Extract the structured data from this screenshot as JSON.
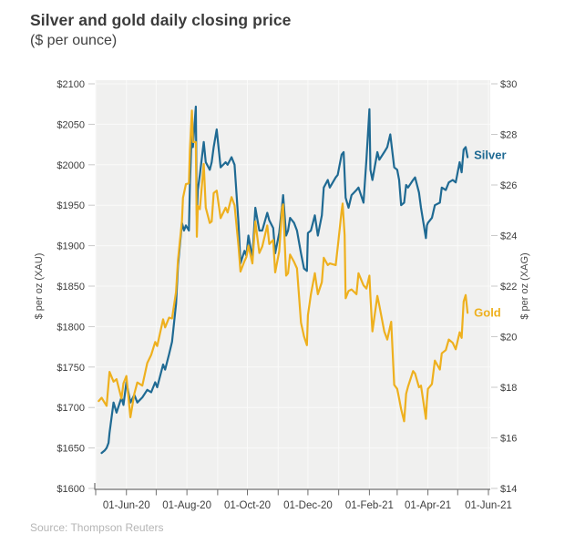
{
  "header": {
    "title": "Silver and gold daily closing price",
    "subtitle": "($ per ounce)"
  },
  "footer": {
    "source": "Source: Thompson Reuters"
  },
  "colors": {
    "silver_line": "#1f6a93",
    "gold_line": "#eeb01e",
    "plot_bg": "#f0f0ef",
    "grid": "#fafaf9",
    "axis_line": "#6e6e6e",
    "tick_minor": "#c9c9c9",
    "tick_text": "#3d3d3d",
    "axis_title_text": "#4a4a4a",
    "title_text": "#3b3b3b",
    "source_text": "#b5b5b5"
  },
  "chart_data": {
    "type": "line",
    "title": "Silver and gold daily closing price",
    "subtitle": "($ per ounce)",
    "x_axis": {
      "start_date": "01-May-20",
      "end_date": "01-Jun-21",
      "range_days": 396,
      "major_ticks": [
        {
          "day": 31,
          "label": "01-Jun-20"
        },
        {
          "day": 92,
          "label": "01-Aug-20"
        },
        {
          "day": 153,
          "label": "01-Oct-20"
        },
        {
          "day": 214,
          "label": "01-Dec-20"
        },
        {
          "day": 276,
          "label": "01-Feb-21"
        },
        {
          "day": 335,
          "label": "01-Apr-21"
        },
        {
          "day": 396,
          "label": "01-Jun-21"
        }
      ],
      "minor_tick_days": [
        0,
        61,
        123,
        184,
        245,
        304,
        365
      ]
    },
    "y_left": {
      "label": "$ per oz (XAU)",
      "min": 1600,
      "max": 2100,
      "step": 50,
      "tick_prefix": "$"
    },
    "y_right": {
      "label": "$ per oz (XAG)",
      "min": 14,
      "max": 30,
      "step": 2,
      "tick_prefix": "$"
    },
    "grid": {
      "horizontal": "left-axis-steps",
      "vertical": "monthly"
    },
    "series": [
      {
        "name": "Silver",
        "axis": "right",
        "color": "#1f6a93",
        "points": [
          [
            6,
            15.4
          ],
          [
            9,
            15.5
          ],
          [
            11,
            15.6
          ],
          [
            13,
            15.8
          ],
          [
            14,
            16.2
          ],
          [
            17,
            17.1
          ],
          [
            18,
            17.4
          ],
          [
            21,
            17.0
          ],
          [
            26,
            17.6
          ],
          [
            28,
            17.3
          ],
          [
            31,
            18.2
          ],
          [
            35,
            17.4
          ],
          [
            39,
            17.7
          ],
          [
            42,
            17.4
          ],
          [
            47,
            17.6
          ],
          [
            52,
            17.9
          ],
          [
            56,
            17.8
          ],
          [
            60,
            18.2
          ],
          [
            62,
            18.0
          ],
          [
            68,
            18.9
          ],
          [
            70,
            18.7
          ],
          [
            74,
            19.3
          ],
          [
            77,
            19.8
          ],
          [
            81,
            21.3
          ],
          [
            83,
            22.8
          ],
          [
            87,
            24.5
          ],
          [
            89,
            24.2
          ],
          [
            91,
            24.4
          ],
          [
            94,
            24.2
          ],
          [
            95,
            26.0
          ],
          [
            97,
            28.3
          ],
          [
            98,
            27.5
          ],
          [
            101,
            29.1
          ],
          [
            102,
            24.8
          ],
          [
            103,
            25.8
          ],
          [
            105,
            26.4
          ],
          [
            109,
            27.7
          ],
          [
            111,
            26.9
          ],
          [
            115,
            26.6
          ],
          [
            117,
            26.9
          ],
          [
            119,
            27.5
          ],
          [
            122,
            28.2
          ],
          [
            126,
            26.7
          ],
          [
            131,
            26.9
          ],
          [
            133,
            26.8
          ],
          [
            137,
            27.1
          ],
          [
            140,
            26.8
          ],
          [
            144,
            24.5
          ],
          [
            146,
            22.9
          ],
          [
            150,
            23.4
          ],
          [
            152,
            23.2
          ],
          [
            154,
            24.0
          ],
          [
            158,
            23.1
          ],
          [
            161,
            25.1
          ],
          [
            165,
            24.2
          ],
          [
            168,
            24.2
          ],
          [
            173,
            24.9
          ],
          [
            175,
            24.6
          ],
          [
            179,
            24.3
          ],
          [
            181,
            23.3
          ],
          [
            185,
            24.1
          ],
          [
            188,
            25.2
          ],
          [
            189,
            25.6
          ],
          [
            192,
            24.0
          ],
          [
            194,
            24.2
          ],
          [
            196,
            24.7
          ],
          [
            200,
            24.5
          ],
          [
            203,
            24.2
          ],
          [
            207,
            23.3
          ],
          [
            210,
            22.7
          ],
          [
            213,
            22.6
          ],
          [
            214,
            24.1
          ],
          [
            217,
            24.2
          ],
          [
            221,
            24.8
          ],
          [
            224,
            24.0
          ],
          [
            228,
            24.8
          ],
          [
            230,
            25.9
          ],
          [
            234,
            26.2
          ],
          [
            236,
            25.9
          ],
          [
            242,
            26.3
          ],
          [
            244,
            26.4
          ],
          [
            248,
            27.2
          ],
          [
            250,
            27.3
          ],
          [
            252,
            25.5
          ],
          [
            255,
            25.1
          ],
          [
            258,
            25.6
          ],
          [
            263,
            25.8
          ],
          [
            265,
            25.9
          ],
          [
            270,
            25.3
          ],
          [
            273,
            27.0
          ],
          [
            276,
            29.0
          ],
          [
            277,
            26.6
          ],
          [
            279,
            26.2
          ],
          [
            284,
            27.3
          ],
          [
            286,
            27.0
          ],
          [
            291,
            27.3
          ],
          [
            294,
            27.5
          ],
          [
            297,
            28.0
          ],
          [
            301,
            26.7
          ],
          [
            304,
            26.6
          ],
          [
            306,
            26.2
          ],
          [
            308,
            25.2
          ],
          [
            311,
            25.3
          ],
          [
            313,
            26.0
          ],
          [
            315,
            25.9
          ],
          [
            320,
            26.2
          ],
          [
            322,
            26.3
          ],
          [
            326,
            25.7
          ],
          [
            328,
            25.1
          ],
          [
            333,
            23.9
          ],
          [
            334,
            24.4
          ],
          [
            335,
            24.5
          ],
          [
            339,
            24.7
          ],
          [
            342,
            25.2
          ],
          [
            347,
            25.3
          ],
          [
            349,
            25.9
          ],
          [
            353,
            25.8
          ],
          [
            356,
            26.1
          ],
          [
            360,
            26.2
          ],
          [
            363,
            26.1
          ],
          [
            367,
            26.9
          ],
          [
            369,
            26.5
          ],
          [
            371,
            27.4
          ],
          [
            373,
            27.5
          ],
          [
            375,
            27.1
          ]
        ]
      },
      {
        "name": "Gold",
        "axis": "left",
        "color": "#eeb01e",
        "points": [
          [
            3,
            1708
          ],
          [
            6,
            1712
          ],
          [
            11,
            1702
          ],
          [
            14,
            1744
          ],
          [
            18,
            1732
          ],
          [
            21,
            1735
          ],
          [
            26,
            1711
          ],
          [
            28,
            1730
          ],
          [
            31,
            1739
          ],
          [
            35,
            1688
          ],
          [
            39,
            1717
          ],
          [
            42,
            1731
          ],
          [
            47,
            1727
          ],
          [
            52,
            1755
          ],
          [
            56,
            1765
          ],
          [
            60,
            1781
          ],
          [
            62,
            1776
          ],
          [
            68,
            1809
          ],
          [
            70,
            1799
          ],
          [
            74,
            1811
          ],
          [
            77,
            1810
          ],
          [
            81,
            1843
          ],
          [
            83,
            1882
          ],
          [
            87,
            1931
          ],
          [
            88,
            1959
          ],
          [
            91,
            1976
          ],
          [
            94,
            1977
          ],
          [
            95,
            2018
          ],
          [
            97,
            2067
          ],
          [
            98,
            2028
          ],
          [
            101,
            2028
          ],
          [
            102,
            1911
          ],
          [
            103,
            1949
          ],
          [
            105,
            1945
          ],
          [
            109,
            2001
          ],
          [
            111,
            1947
          ],
          [
            115,
            1928
          ],
          [
            117,
            1930
          ],
          [
            119,
            1965
          ],
          [
            122,
            1968
          ],
          [
            126,
            1934
          ],
          [
            131,
            1947
          ],
          [
            133,
            1941
          ],
          [
            137,
            1960
          ],
          [
            140,
            1950
          ],
          [
            144,
            1900
          ],
          [
            146,
            1868
          ],
          [
            150,
            1881
          ],
          [
            152,
            1886
          ],
          [
            154,
            1900
          ],
          [
            158,
            1878
          ],
          [
            161,
            1930
          ],
          [
            165,
            1891
          ],
          [
            168,
            1899
          ],
          [
            173,
            1925
          ],
          [
            175,
            1902
          ],
          [
            179,
            1907
          ],
          [
            181,
            1867
          ],
          [
            185,
            1893
          ],
          [
            188,
            1947
          ],
          [
            189,
            1951
          ],
          [
            192,
            1863
          ],
          [
            194,
            1866
          ],
          [
            196,
            1889
          ],
          [
            200,
            1880
          ],
          [
            203,
            1872
          ],
          [
            207,
            1805
          ],
          [
            210,
            1788
          ],
          [
            213,
            1777
          ],
          [
            214,
            1814
          ],
          [
            217,
            1840
          ],
          [
            221,
            1866
          ],
          [
            224,
            1840
          ],
          [
            228,
            1855
          ],
          [
            230,
            1885
          ],
          [
            234,
            1876
          ],
          [
            236,
            1878
          ],
          [
            242,
            1876
          ],
          [
            244,
            1898
          ],
          [
            248,
            1943
          ],
          [
            249,
            1952
          ],
          [
            251,
            1913
          ],
          [
            252,
            1835
          ],
          [
            255,
            1844
          ],
          [
            258,
            1846
          ],
          [
            263,
            1840
          ],
          [
            265,
            1866
          ],
          [
            270,
            1851
          ],
          [
            273,
            1847
          ],
          [
            276,
            1863
          ],
          [
            277,
            1837
          ],
          [
            279,
            1794
          ],
          [
            284,
            1838
          ],
          [
            286,
            1826
          ],
          [
            291,
            1794
          ],
          [
            294,
            1784
          ],
          [
            298,
            1806
          ],
          [
            301,
            1728
          ],
          [
            304,
            1723
          ],
          [
            306,
            1711
          ],
          [
            308,
            1698
          ],
          [
            311,
            1683
          ],
          [
            313,
            1717
          ],
          [
            315,
            1726
          ],
          [
            320,
            1745
          ],
          [
            322,
            1742
          ],
          [
            326,
            1725
          ],
          [
            328,
            1727
          ],
          [
            333,
            1686
          ],
          [
            334,
            1708
          ],
          [
            335,
            1723
          ],
          [
            339,
            1729
          ],
          [
            342,
            1758
          ],
          [
            347,
            1747
          ],
          [
            349,
            1767
          ],
          [
            353,
            1771
          ],
          [
            356,
            1784
          ],
          [
            360,
            1780
          ],
          [
            363,
            1772
          ],
          [
            367,
            1793
          ],
          [
            369,
            1786
          ],
          [
            371,
            1831
          ],
          [
            373,
            1839
          ],
          [
            375,
            1817
          ]
        ]
      }
    ]
  }
}
